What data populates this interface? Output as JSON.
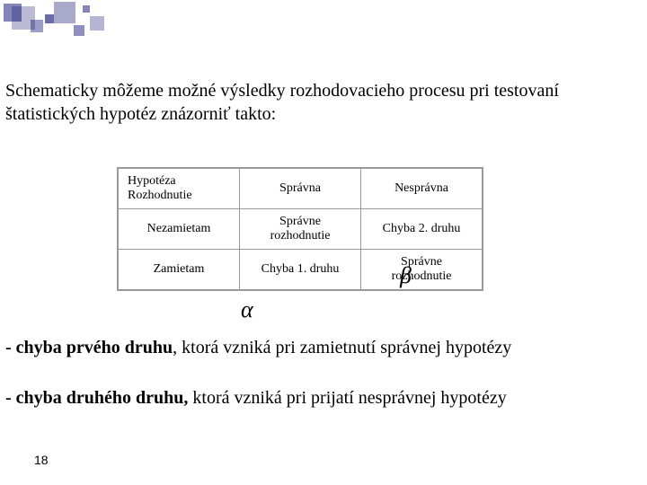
{
  "intro": "Schematicky môžeme možné výsledky rozhodovacieho procesu pri testovaní štatistických hypotéz znázorniť takto:",
  "table": {
    "r1c1a": "Hypotéza",
    "r1c1b": "Rozhodnutie",
    "r1c2": "Správna",
    "r1c3": "Nesprávna",
    "r2c1": "Nezamietam",
    "r2c2a": "Správne",
    "r2c2b": "rozhodnutie",
    "r2c3": "Chyba 2. druhu",
    "r3c1": "Zamietam",
    "r3c2": "Chyba 1. druhu",
    "r3c3a": "Správne",
    "r3c3b": "rozhodnutie"
  },
  "greek": {
    "alpha": "α",
    "beta": "β"
  },
  "bullets": {
    "b1_bold": "-  chyba prvého druhu",
    "b1_rest": ", ktorá vzniká pri zamietnutí správnej hypotézy",
    "b2_bold": " - chyba druhého druhu,",
    "b2_rest": " ktorá vzniká pri prijatí nesprávnej hypotézy"
  },
  "page": "18"
}
